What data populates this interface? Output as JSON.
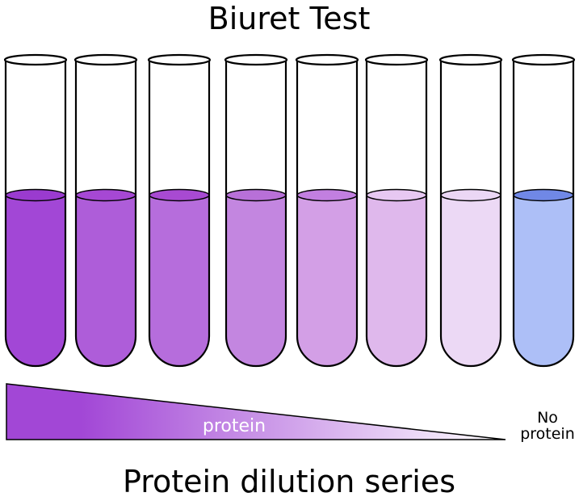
{
  "title": "Biuret Test",
  "caption": "Protein dilution series",
  "wedge": {
    "label": "protein",
    "start_color": "#a247d6",
    "end_color": "#ffffff"
  },
  "control": {
    "line1": "No",
    "line2": "protein"
  },
  "tubes": [
    {
      "body_color": "#a247d6",
      "surface_color": "#9a3bcf",
      "fill_level": 0.5
    },
    {
      "body_color": "#ae5dd9",
      "surface_color": "#a648d4",
      "fill_level": 0.5
    },
    {
      "body_color": "#b66ddc",
      "surface_color": "#a84ad2",
      "fill_level": 0.5
    },
    {
      "body_color": "#c386e0",
      "surface_color": "#b870d8",
      "fill_level": 0.5
    },
    {
      "body_color": "#d39fe6",
      "surface_color": "#c27fe0",
      "fill_level": 0.5
    },
    {
      "body_color": "#dfb8ec",
      "surface_color": "#e7c8f2",
      "fill_level": 0.5
    },
    {
      "body_color": "#ecd9f5",
      "surface_color": "#ebd7f5",
      "fill_level": 0.5
    },
    {
      "body_color": "#adbff7",
      "surface_color": "#7088e6",
      "fill_level": 0.5
    }
  ]
}
